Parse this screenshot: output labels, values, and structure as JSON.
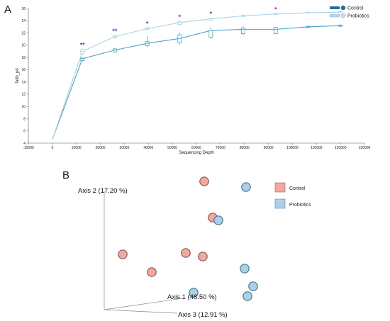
{
  "panels": {
    "a": "A",
    "b": "B"
  },
  "chart_data": [
    {
      "type": "line",
      "xlabel": "Sequencing Depth",
      "ylabel": "faith_pd",
      "xlim": [
        -10000,
        130000
      ],
      "ylim": [
        4,
        26
      ],
      "xticks": [
        "-10000",
        "0",
        "10000",
        "20000",
        "30000",
        "40000",
        "50000",
        "60000",
        "70000",
        "80000",
        "90000",
        "100000",
        "110000",
        "120000",
        "130000"
      ],
      "yticks": [
        "4",
        "6",
        "8",
        "10",
        "12",
        "14",
        "16",
        "18",
        "20",
        "22",
        "24",
        "26"
      ],
      "x": [
        0,
        12500,
        26000,
        39500,
        53000,
        66000,
        79500,
        93000,
        106500,
        120000
      ],
      "series": [
        {
          "name": "Control",
          "color": "#4aa3c8",
          "values": [
            4.6,
            17.8,
            19.2,
            20.3,
            21.1,
            22.4,
            22.6,
            22.6,
            23.0,
            23.2
          ],
          "box_low": [
            4.6,
            17.5,
            18.9,
            19.9,
            20.4,
            21.3,
            21.9,
            21.9,
            22.9,
            23.1
          ],
          "box_high": [
            4.6,
            17.9,
            19.4,
            20.6,
            21.7,
            22.4,
            22.8,
            22.9,
            23.1,
            23.3
          ],
          "whisker_low": [
            4.6,
            17.4,
            18.8,
            19.7,
            20.1,
            21.0,
            21.6,
            21.8,
            22.8,
            23.0
          ],
          "whisker_high": [
            4.6,
            18.0,
            19.5,
            21.5,
            22.1,
            23.0,
            23.1,
            23.0,
            23.2,
            23.4
          ]
        },
        {
          "name": "Probiotics",
          "color": "#a9d4e4",
          "values": [
            4.6,
            19.0,
            21.4,
            22.7,
            23.7,
            24.3,
            24.8,
            25.1,
            25.3,
            25.4
          ],
          "box_low": [
            4.6,
            18.6,
            21.2,
            22.6,
            23.4,
            24.1,
            24.7,
            25.0,
            25.3,
            25.4
          ],
          "box_high": [
            4.6,
            19.3,
            21.6,
            22.9,
            23.9,
            24.4,
            24.9,
            25.2,
            25.4,
            25.5
          ],
          "whisker_low": [
            4.6,
            18.4,
            21.0,
            22.5,
            23.2,
            24.0,
            24.6,
            24.9,
            25.2,
            25.3
          ],
          "whisker_high": [
            4.6,
            19.5,
            21.8,
            23.0,
            24.1,
            24.6,
            25.0,
            25.3,
            25.5,
            25.6
          ]
        }
      ],
      "significance": [
        {
          "x": 12500,
          "label": "**"
        },
        {
          "x": 26000,
          "label": "**"
        },
        {
          "x": 39500,
          "label": "*"
        },
        {
          "x": 53000,
          "label": "*"
        },
        {
          "x": 66000,
          "label": "*"
        },
        {
          "x": 93000,
          "label": "*"
        }
      ],
      "legend": "top-right"
    },
    {
      "type": "scatter",
      "axes": {
        "axis1": "Axis 1 (48.50 %)",
        "axis2": "Axis 2 (17.20 %)",
        "axis3": "Axis 3 (12.91 %)"
      },
      "series": [
        {
          "name": "Control",
          "color": "#f4a6a0",
          "points": [
            [
              288,
              256
            ],
            [
              300,
              307
            ],
            [
              173,
              359
            ],
            [
              262,
              357
            ],
            [
              286,
              362
            ],
            [
              214,
              384
            ]
          ]
        },
        {
          "name": "Probiotics",
          "color": "#a9d0e6",
          "points": [
            [
              347,
              264
            ],
            [
              308,
              311
            ],
            [
              345,
              379
            ],
            [
              357,
              404
            ],
            [
              349,
              418
            ],
            [
              273,
              413
            ]
          ]
        }
      ],
      "legend": "right"
    }
  ]
}
